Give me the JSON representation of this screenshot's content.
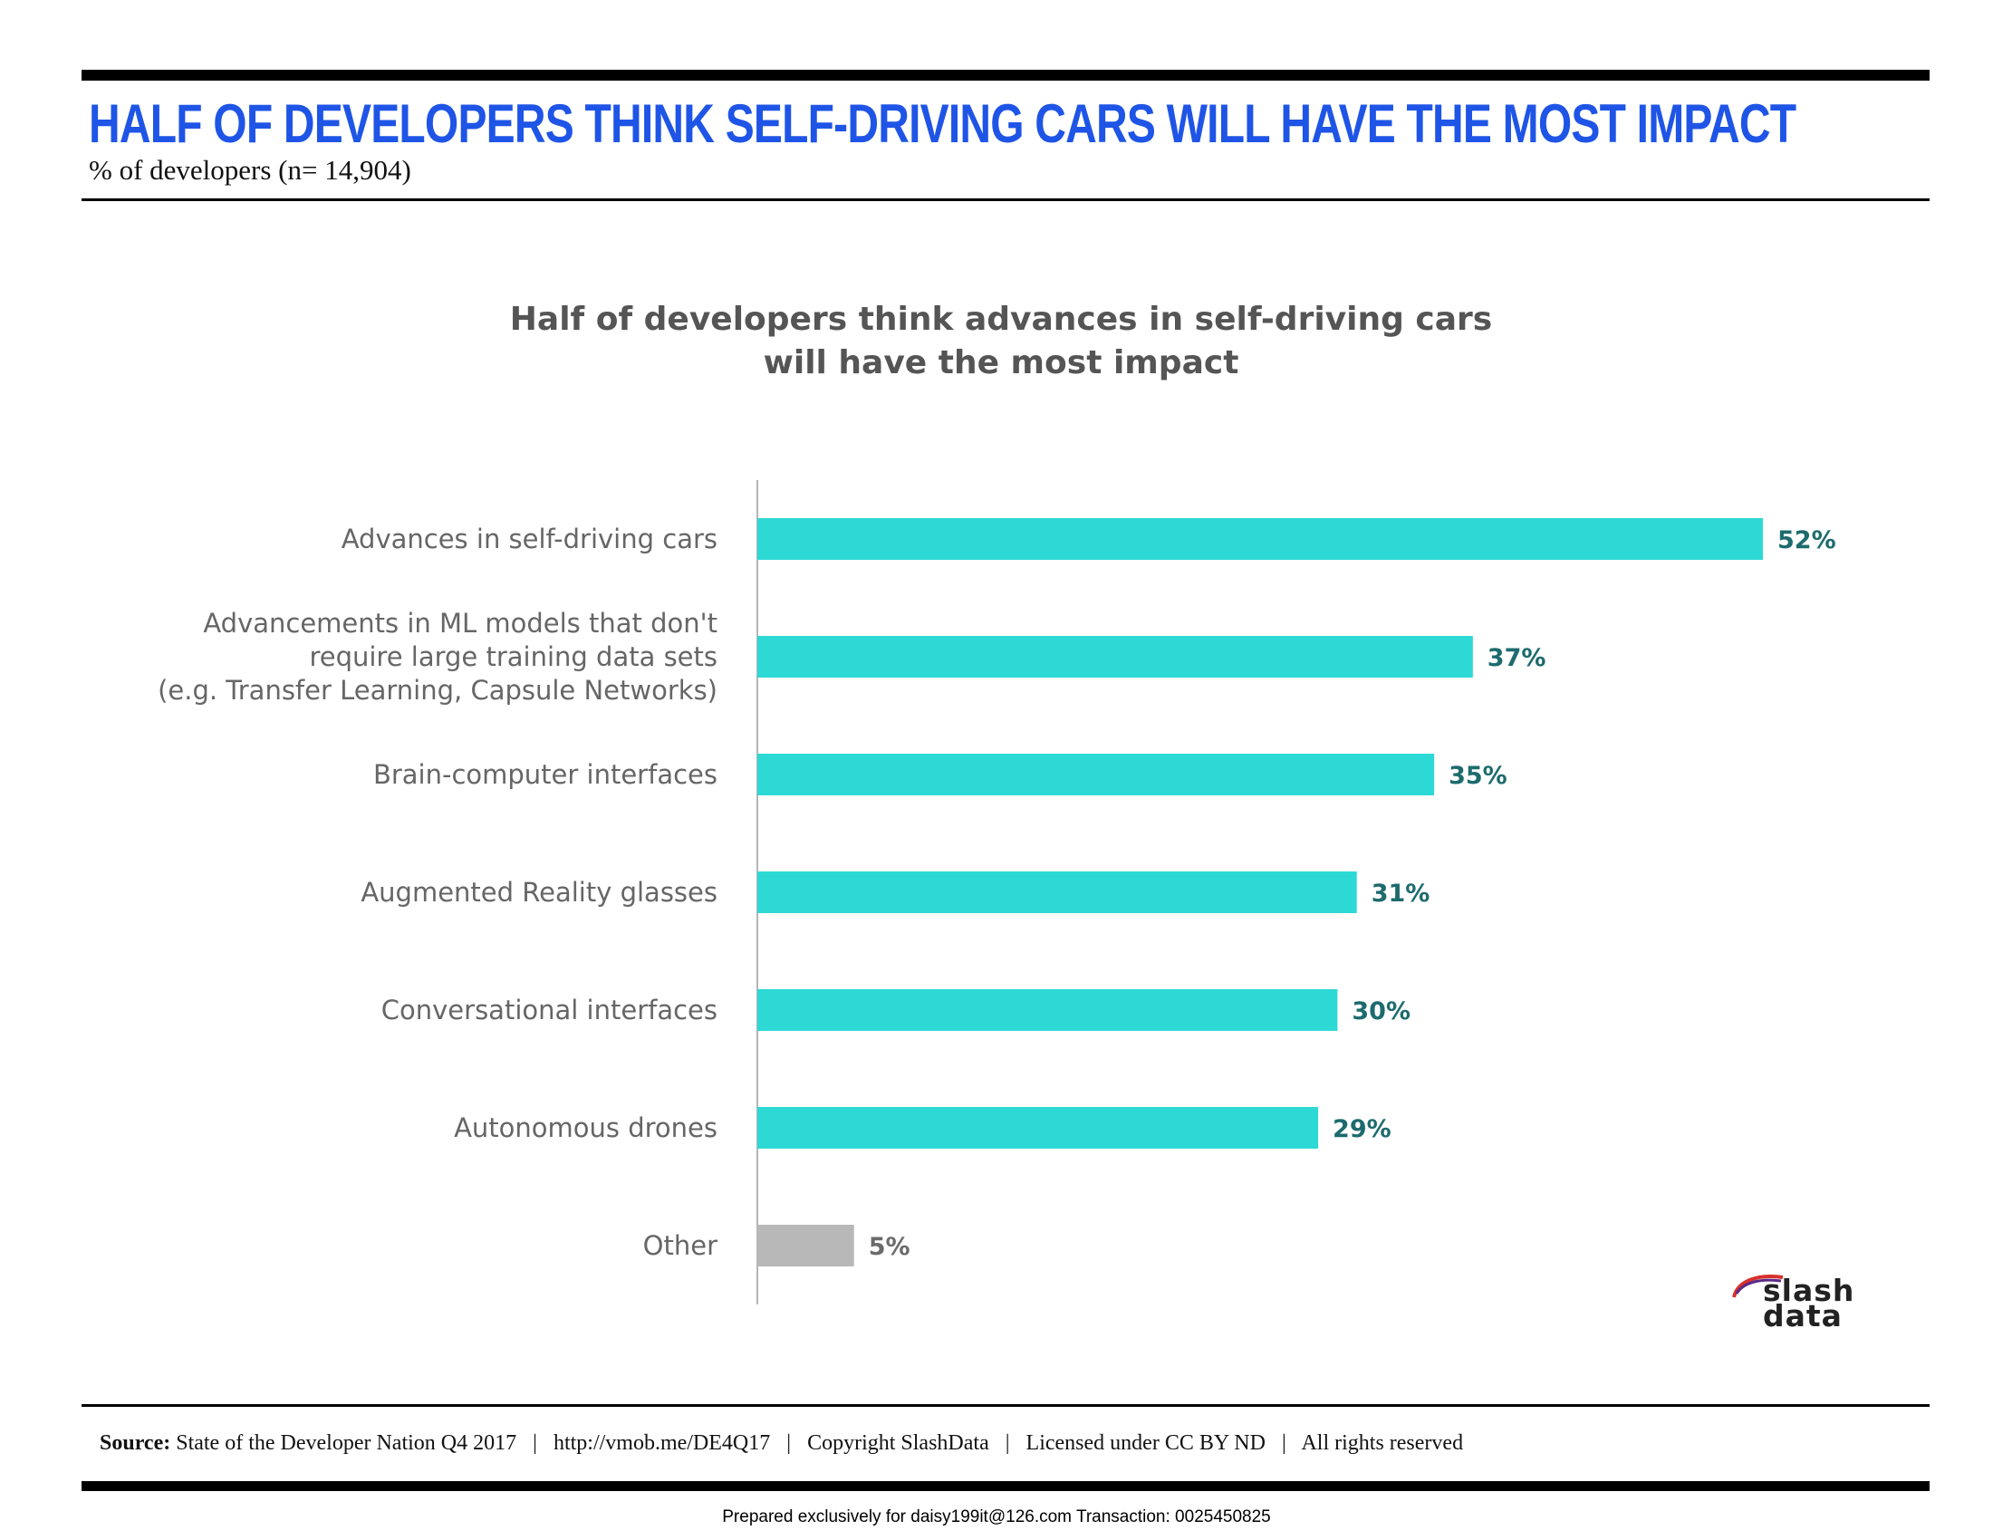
{
  "header": {
    "title": "HALF OF DEVELOPERS THINK SELF-DRIVING CARS WILL HAVE THE MOST IMPACT",
    "subtitle": "% of developers (n= 14,904)"
  },
  "chart_data": {
    "type": "bar",
    "orientation": "horizontal",
    "title_lines": [
      "Half of developers think advances in self-driving cars",
      "will have the most impact"
    ],
    "categories": [
      [
        "Advances in self-driving cars"
      ],
      [
        "Advancements in ML models that don't",
        "require large training data sets",
        "(e.g. Transfer Learning, Capsule Networks)"
      ],
      [
        "Brain-computer interfaces"
      ],
      [
        "Augmented Reality glasses"
      ],
      [
        "Conversational interfaces"
      ],
      [
        "Autonomous drones"
      ],
      [
        "Other"
      ]
    ],
    "values": [
      52,
      37,
      35,
      31,
      30,
      29,
      5
    ],
    "value_labels": [
      "52%",
      "37%",
      "35%",
      "31%",
      "30%",
      "29%",
      "5%"
    ],
    "bar_colors": [
      "#2dd9d5",
      "#2dd9d5",
      "#2dd9d5",
      "#2dd9d5",
      "#2dd9d5",
      "#2dd9d5",
      "#b8b8b8"
    ],
    "label_colors": [
      "#1d6b6e",
      "#1d6b6e",
      "#1d6b6e",
      "#1d6b6e",
      "#1d6b6e",
      "#1d6b6e",
      "#6b6b6b"
    ],
    "xlim": [
      0,
      52
    ],
    "unit": "%"
  },
  "footer": {
    "source_label": "Source:",
    "source_parts": [
      "State of the Developer Nation Q4 2017",
      "http://vmob.me/DE4Q17",
      "Copyright SlashData",
      "Licensed under CC BY ND",
      "All rights reserved"
    ],
    "separator": "|",
    "prepared": "Prepared exclusively for daisy199it@126.com  Transaction: 0025450825"
  },
  "logo": {
    "line1": "slash",
    "line2": "data",
    "arc_colors": [
      "#d7312c",
      "#5b2a86"
    ]
  }
}
